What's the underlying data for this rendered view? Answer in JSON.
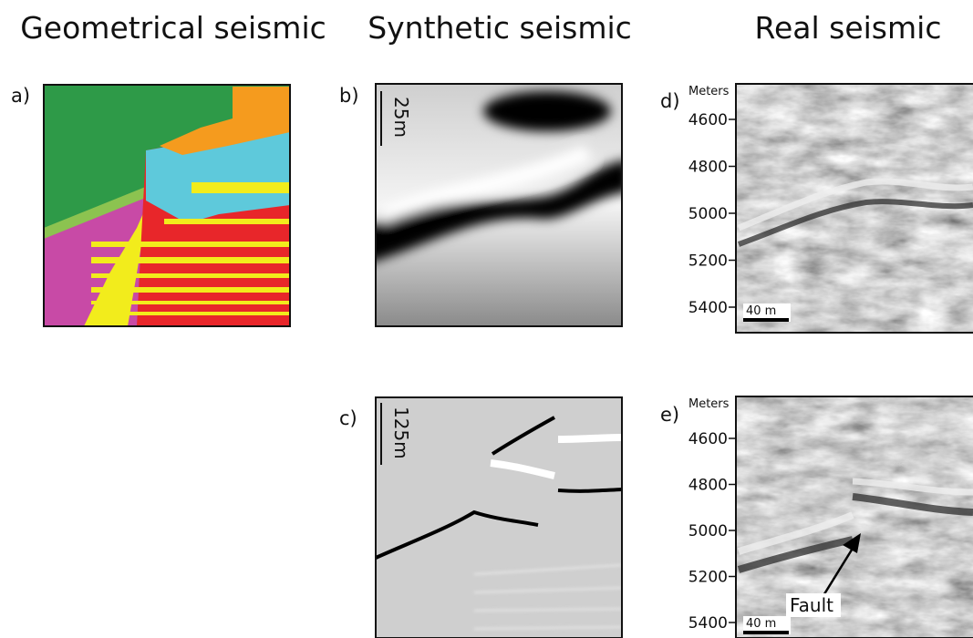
{
  "columns": [
    {
      "title": "Geometrical seismic"
    },
    {
      "title": "Synthetic seismic"
    },
    {
      "title": "Real seismic"
    }
  ],
  "panels": [
    {
      "label": "a)"
    },
    {
      "label": "b)",
      "scale": "25m"
    },
    {
      "label": "c)",
      "scale": "125m"
    },
    {
      "label": "d)",
      "axis_title": "Meters",
      "ticks": [
        "4600",
        "4800",
        "5000",
        "5200",
        "5400"
      ],
      "scale": "40 m"
    },
    {
      "label": "e)",
      "axis_title": "Meters",
      "ticks": [
        "4600",
        "4800",
        "5000",
        "5200",
        "5400"
      ],
      "scale": "40 m",
      "annotation": "Fault"
    }
  ]
}
